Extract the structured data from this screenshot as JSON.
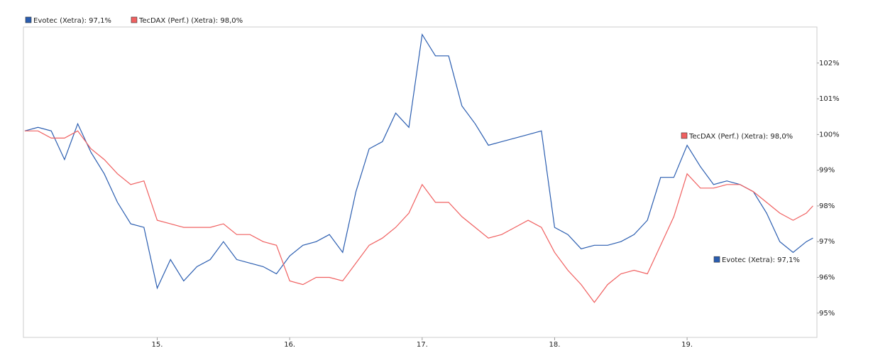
{
  "chart_data": {
    "type": "line",
    "x": [
      14.0,
      14.1,
      14.2,
      14.3,
      14.4,
      14.5,
      14.6,
      14.7,
      14.8,
      14.9,
      15.0,
      15.1,
      15.2,
      15.3,
      15.4,
      15.5,
      15.6,
      15.7,
      15.8,
      15.9,
      16.0,
      16.1,
      16.2,
      16.3,
      16.4,
      16.5,
      16.6,
      16.7,
      16.8,
      16.9,
      17.0,
      17.1,
      17.2,
      17.3,
      17.4,
      17.5,
      17.6,
      17.7,
      17.8,
      17.9,
      18.0,
      18.1,
      18.2,
      18.3,
      18.4,
      18.5,
      18.6,
      18.7,
      18.8,
      18.9,
      19.0,
      19.1,
      19.2,
      19.3,
      19.4,
      19.5,
      19.6,
      19.7,
      19.8,
      19.9,
      19.95
    ],
    "series": [
      {
        "name": "Evotec (Xetra): 97,1%",
        "color": "#2a5db0",
        "values": [
          100.1,
          100.2,
          100.1,
          99.3,
          100.3,
          99.5,
          98.9,
          98.1,
          97.5,
          97.4,
          95.7,
          96.5,
          95.9,
          96.3,
          96.5,
          97.0,
          96.5,
          96.4,
          96.3,
          96.1,
          96.6,
          96.9,
          97.0,
          97.2,
          96.7,
          98.4,
          99.6,
          99.8,
          100.6,
          100.2,
          102.8,
          102.2,
          102.2,
          100.8,
          100.3,
          99.7,
          99.8,
          99.9,
          100.0,
          100.1,
          97.4,
          97.2,
          96.8,
          96.9,
          96.9,
          97.0,
          97.2,
          97.6,
          98.8,
          98.8,
          99.7,
          99.1,
          98.6,
          98.7,
          98.6,
          98.4,
          97.8,
          97.0,
          96.7,
          97.0,
          97.1
        ]
      },
      {
        "name": "TecDAX (Perf.) (Xetra): 98,0%",
        "color": "#f06060",
        "values": [
          100.1,
          100.1,
          99.9,
          99.9,
          100.1,
          99.6,
          99.3,
          98.9,
          98.6,
          98.7,
          97.6,
          97.5,
          97.4,
          97.4,
          97.4,
          97.5,
          97.2,
          97.2,
          97.0,
          96.9,
          95.9,
          95.8,
          96.0,
          96.0,
          95.9,
          96.4,
          96.9,
          97.1,
          97.4,
          97.8,
          98.6,
          98.1,
          98.1,
          97.7,
          97.4,
          97.1,
          97.2,
          97.4,
          97.6,
          97.4,
          96.7,
          96.2,
          95.8,
          95.3,
          95.8,
          96.1,
          96.2,
          96.1,
          96.9,
          97.7,
          98.9,
          98.5,
          98.5,
          98.6,
          98.6,
          98.4,
          98.1,
          97.8,
          97.6,
          97.8,
          98.0
        ]
      }
    ],
    "xlim": [
      13.99,
      19.98
    ],
    "xticks": [
      {
        "value": 15,
        "label": "15."
      },
      {
        "value": 16,
        "label": "16."
      },
      {
        "value": 17,
        "label": "17."
      },
      {
        "value": 18,
        "label": "18."
      },
      {
        "value": 19,
        "label": "19."
      }
    ],
    "ylim": [
      94.32,
      103.01
    ],
    "yticks": [
      {
        "value": 95,
        "label": "95%"
      },
      {
        "value": 96,
        "label": "96%"
      },
      {
        "value": 97,
        "label": "97%"
      },
      {
        "value": 98,
        "label": "98%"
      },
      {
        "value": 99,
        "label": "99%"
      },
      {
        "value": 100,
        "label": "100%"
      },
      {
        "value": 101,
        "label": "101%"
      },
      {
        "value": 102,
        "label": "102%"
      }
    ]
  }
}
